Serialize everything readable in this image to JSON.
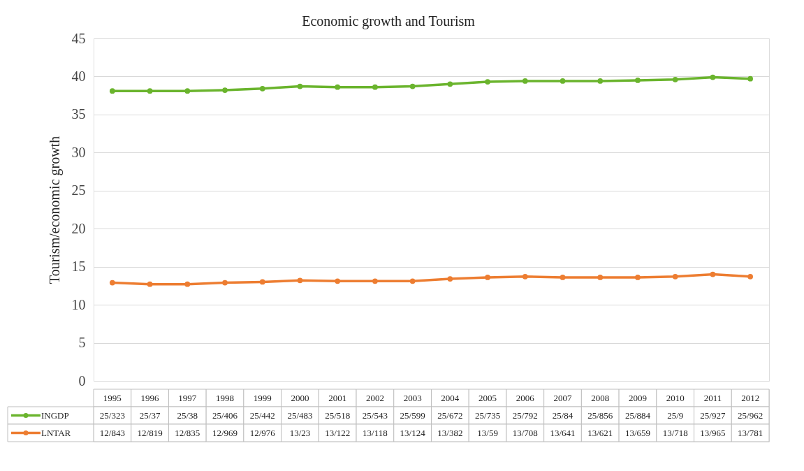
{
  "chart_data": {
    "type": "line",
    "title": "Economic growth and Tourism",
    "ylabel": "Tourism/economic growth",
    "categories": [
      "1995",
      "1996",
      "1997",
      "1998",
      "1999",
      "2000",
      "2001",
      "2002",
      "2003",
      "2004",
      "2005",
      "2006",
      "2007",
      "2008",
      "2009",
      "2010",
      "2011",
      "2012"
    ],
    "series": [
      {
        "name": "INGDP",
        "color": "#6ab42d",
        "values": [
          38.1,
          38.1,
          38.1,
          38.2,
          38.4,
          38.7,
          38.6,
          38.6,
          38.7,
          39.0,
          39.3,
          39.4,
          39.4,
          39.4,
          39.5,
          39.6,
          39.9,
          39.7
        ],
        "value_labels": [
          "25/323",
          "25/37",
          "25/38",
          "25/406",
          "25/442",
          "25/483",
          "25/518",
          "25/543",
          "25/599",
          "25/672",
          "25/735",
          "25/792",
          "25/84",
          "25/856",
          "25/884",
          "25/9",
          "25/927",
          "25/962"
        ]
      },
      {
        "name": "LNTAR",
        "color": "#ed7d31",
        "values": [
          12.9,
          12.7,
          12.7,
          12.9,
          13.0,
          13.2,
          13.1,
          13.1,
          13.1,
          13.4,
          13.6,
          13.7,
          13.6,
          13.6,
          13.6,
          13.7,
          14.0,
          13.7
        ],
        "value_labels": [
          "12/843",
          "12/819",
          "12/835",
          "12/969",
          "12/976",
          "13/23",
          "13/122",
          "13/118",
          "13/124",
          "13/382",
          "13/59",
          "13/708",
          "13/641",
          "13/621",
          "13/659",
          "13/718",
          "13/965",
          "13/781"
        ]
      }
    ],
    "ylim": [
      0,
      45
    ],
    "yticks": [
      0,
      5,
      10,
      15,
      20,
      25,
      30,
      35,
      40,
      45
    ],
    "grid": "y",
    "legend": "bottom",
    "marker": "circle",
    "line_style": "solid"
  }
}
